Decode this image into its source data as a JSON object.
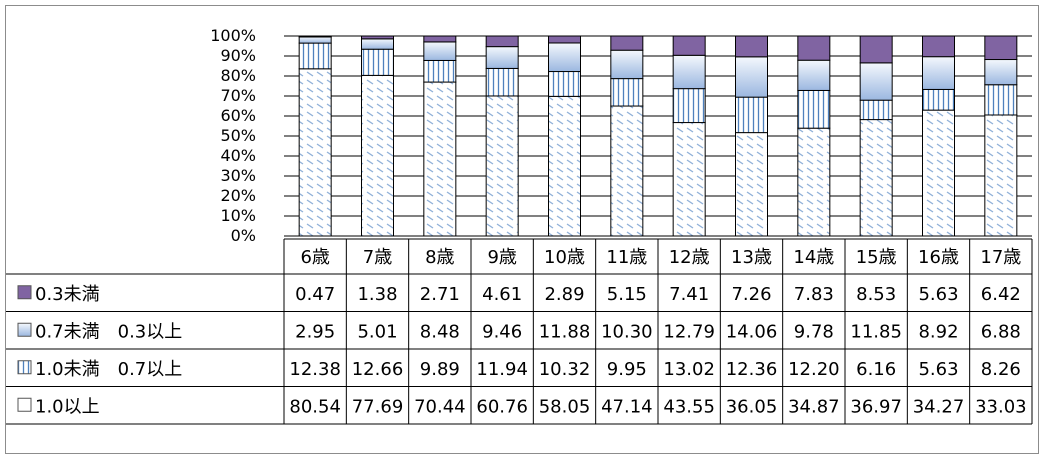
{
  "chart_data": {
    "type": "bar",
    "stacked": true,
    "normalized_100pct": true,
    "categories": [
      "6歳",
      "7歳",
      "8歳",
      "9歳",
      "10歳",
      "11歳",
      "12歳",
      "13歳",
      "14歳",
      "15歳",
      "16歳",
      "17歳"
    ],
    "series": [
      {
        "name": "1.0以上",
        "values": [
          "80.54",
          "77.69",
          "70.44",
          "60.76",
          "58.05",
          "47.14",
          "43.55",
          "36.05",
          "34.87",
          "36.97",
          "34.27",
          "33.03"
        ],
        "color": "#ffffff",
        "pattern": "diagonal-dashes"
      },
      {
        "name": "1.0未満　0.7以上",
        "values": [
          "12.38",
          "12.66",
          "9.89",
          "11.94",
          "10.32",
          "9.95",
          "13.02",
          "12.36",
          "12.20",
          "6.16",
          "5.63",
          "8.26"
        ],
        "color": "#ffffff",
        "pattern": "vertical-lines"
      },
      {
        "name": "0.7未満　0.3以上",
        "values": [
          "2.95",
          "5.01",
          "8.48",
          "9.46",
          "11.88",
          "10.30",
          "12.79",
          "14.06",
          "9.78",
          "11.85",
          "8.92",
          "6.88"
        ],
        "color": "#9bb7e0",
        "pattern": "gradient"
      },
      {
        "name": "0.3未満",
        "values": [
          "0.47",
          "1.38",
          "2.71",
          "4.61",
          "2.89",
          "5.15",
          "7.41",
          "7.26",
          "7.83",
          "8.53",
          "5.63",
          "6.42"
        ],
        "color": "#8064a2",
        "pattern": "solid"
      }
    ],
    "y_ticks": [
      "0%",
      "10%",
      "20%",
      "30%",
      "40%",
      "50%",
      "60%",
      "70%",
      "80%",
      "90%",
      "100%"
    ],
    "ylim": [
      0,
      100
    ],
    "grid": true,
    "legend": "data-table-left"
  }
}
